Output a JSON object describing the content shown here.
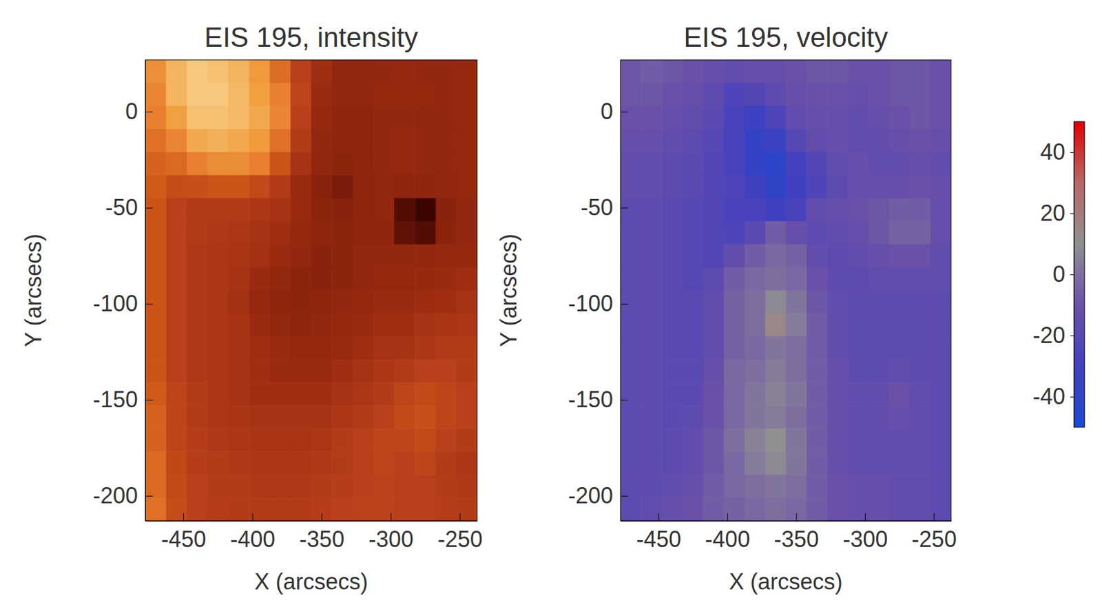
{
  "chart_data": [
    {
      "type": "heatmap",
      "title": "EIS 195, intensity",
      "x_label": "X (arcsecs)",
      "y_label": "Y (arcsecs)",
      "xlim": [
        -477.5,
        -237.5
      ],
      "ylim": [
        -213,
        27
      ],
      "xticks": [
        -450,
        -400,
        -350,
        -300,
        -250
      ],
      "yticks": [
        -200,
        -150,
        -100,
        -50,
        0
      ],
      "zlim": [
        0,
        100
      ],
      "x": [
        -470,
        -455,
        -440,
        -425,
        -410,
        -395,
        -380,
        -365,
        -350,
        -335,
        -320,
        -305,
        -290,
        -275,
        -260,
        -245
      ],
      "y": [
        21,
        9,
        -3,
        -15,
        -27,
        -39,
        -51,
        -63,
        -75,
        -87,
        -99,
        -111,
        -123,
        -135,
        -147,
        -159,
        -171,
        -183,
        -195,
        -207
      ],
      "z": [
        [
          75,
          85,
          90,
          88,
          85,
          78,
          65,
          50,
          42,
          35,
          35,
          36,
          37,
          36,
          36,
          38
        ],
        [
          72,
          85,
          90,
          90,
          86,
          80,
          70,
          52,
          40,
          35,
          35,
          37,
          38,
          37,
          36,
          38
        ],
        [
          70,
          80,
          88,
          88,
          86,
          82,
          72,
          50,
          38,
          33,
          34,
          36,
          36,
          35,
          36,
          38
        ],
        [
          66,
          72,
          82,
          84,
          82,
          78,
          66,
          48,
          36,
          33,
          34,
          36,
          37,
          36,
          36,
          38
        ],
        [
          62,
          64,
          70,
          74,
          74,
          70,
          58,
          44,
          35,
          32,
          34,
          36,
          37,
          36,
          36,
          38
        ],
        [
          60,
          55,
          56,
          58,
          58,
          54,
          48,
          40,
          30,
          25,
          33,
          35,
          34,
          33,
          35,
          37
        ],
        [
          58,
          50,
          48,
          48,
          48,
          46,
          44,
          40,
          32,
          30,
          33,
          35,
          15,
          10,
          30,
          36
        ],
        [
          58,
          50,
          48,
          47,
          46,
          44,
          42,
          38,
          34,
          32,
          34,
          34,
          18,
          15,
          32,
          36
        ],
        [
          58,
          50,
          47,
          46,
          45,
          43,
          40,
          36,
          30,
          32,
          35,
          36,
          36,
          36,
          37,
          38
        ],
        [
          58,
          50,
          47,
          46,
          44,
          40,
          36,
          32,
          30,
          32,
          35,
          37,
          38,
          39,
          40,
          42
        ],
        [
          58,
          50,
          47,
          46,
          43,
          38,
          34,
          32,
          33,
          36,
          38,
          40,
          40,
          41,
          42,
          44
        ],
        [
          58,
          50,
          47,
          46,
          44,
          40,
          36,
          34,
          36,
          38,
          40,
          42,
          42,
          44,
          45,
          46
        ],
        [
          58,
          50,
          47,
          46,
          44,
          42,
          40,
          38,
          38,
          40,
          42,
          44,
          44,
          46,
          48,
          48
        ],
        [
          58,
          50,
          47,
          46,
          44,
          42,
          40,
          40,
          40,
          42,
          44,
          46,
          48,
          50,
          50,
          48
        ],
        [
          60,
          52,
          48,
          46,
          44,
          42,
          42,
          42,
          42,
          44,
          46,
          48,
          52,
          54,
          52,
          50
        ],
        [
          62,
          52,
          48,
          46,
          45,
          44,
          44,
          44,
          44,
          46,
          48,
          50,
          54,
          56,
          52,
          50
        ],
        [
          62,
          52,
          49,
          47,
          46,
          45,
          45,
          45,
          46,
          48,
          50,
          52,
          52,
          54,
          50,
          48
        ],
        [
          64,
          53,
          49,
          48,
          47,
          46,
          46,
          46,
          47,
          48,
          50,
          52,
          50,
          52,
          48,
          46
        ],
        [
          64,
          54,
          50,
          48,
          48,
          47,
          47,
          47,
          48,
          49,
          50,
          51,
          50,
          50,
          48,
          47
        ],
        [
          66,
          55,
          50,
          49,
          48,
          48,
          48,
          48,
          49,
          50,
          51,
          51,
          50,
          50,
          49,
          48
        ]
      ]
    },
    {
      "type": "heatmap",
      "title": "EIS 195, velocity",
      "x_label": "X (arcsecs)",
      "y_label": "Y (arcsecs)",
      "xlim": [
        -477.5,
        -237.5
      ],
      "ylim": [
        -213,
        27
      ],
      "xticks": [
        -450,
        -400,
        -350,
        -300,
        -250
      ],
      "yticks": [
        -200,
        -150,
        -100,
        -50,
        0
      ],
      "zlim": [
        -50,
        50
      ],
      "zticks": [
        -40,
        -20,
        0,
        20,
        40
      ],
      "x": [
        -470,
        -455,
        -440,
        -425,
        -410,
        -395,
        -380,
        -365,
        -350,
        -335,
        -320,
        -305,
        -290,
        -275,
        -260,
        -245
      ],
      "y": [
        21,
        9,
        -3,
        -15,
        -27,
        -39,
        -51,
        -63,
        -75,
        -87,
        -99,
        -111,
        -123,
        -135,
        -147,
        -159,
        -171,
        -183,
        -195,
        -207
      ],
      "z": [
        [
          -8,
          -6,
          -8,
          -10,
          -12,
          -14,
          -12,
          -12,
          -10,
          -8,
          -8,
          -10,
          -10,
          -8,
          -8,
          -10
        ],
        [
          -8,
          -8,
          -10,
          -12,
          -16,
          -24,
          -22,
          -16,
          -12,
          -10,
          -10,
          -12,
          -10,
          -8,
          -8,
          -10
        ],
        [
          -10,
          -10,
          -12,
          -14,
          -18,
          -26,
          -32,
          -24,
          -14,
          -12,
          -12,
          -14,
          -12,
          -10,
          -8,
          -10
        ],
        [
          -12,
          -12,
          -14,
          -16,
          -20,
          -26,
          -36,
          -34,
          -20,
          -14,
          -12,
          -14,
          -14,
          -12,
          -10,
          -12
        ],
        [
          -14,
          -14,
          -16,
          -18,
          -22,
          -26,
          -36,
          -42,
          -28,
          -22,
          -14,
          -12,
          -14,
          -14,
          -12,
          -14
        ],
        [
          -14,
          -14,
          -16,
          -18,
          -22,
          -24,
          -30,
          -40,
          -30,
          -24,
          -16,
          -12,
          -12,
          -12,
          -10,
          -12
        ],
        [
          -16,
          -16,
          -18,
          -20,
          -22,
          -26,
          -26,
          -30,
          -26,
          -14,
          -12,
          -10,
          -8,
          -6,
          -6,
          -12
        ],
        [
          -16,
          -16,
          -18,
          -20,
          -22,
          -24,
          -18,
          -6,
          -12,
          -16,
          -14,
          -12,
          -8,
          -4,
          -4,
          -12
        ],
        [
          -16,
          -16,
          -18,
          -20,
          -22,
          -14,
          -6,
          -2,
          -4,
          -14,
          -16,
          -14,
          -12,
          -10,
          -10,
          -14
        ],
        [
          -16,
          -16,
          -18,
          -20,
          -16,
          -6,
          -2,
          0,
          -2,
          -10,
          -16,
          -16,
          -14,
          -14,
          -14,
          -14
        ],
        [
          -16,
          -16,
          -18,
          -18,
          -14,
          -4,
          0,
          8,
          2,
          -8,
          -14,
          -16,
          -16,
          -16,
          -16,
          -16
        ],
        [
          -16,
          -16,
          -18,
          -18,
          -14,
          -4,
          0,
          14,
          4,
          -6,
          -14,
          -16,
          -16,
          -16,
          -16,
          -16
        ],
        [
          -16,
          -16,
          -18,
          -18,
          -14,
          -4,
          -2,
          2,
          0,
          -6,
          -14,
          -16,
          -16,
          -16,
          -16,
          -16
        ],
        [
          -16,
          -16,
          -18,
          -18,
          -12,
          -2,
          0,
          4,
          0,
          -6,
          -12,
          -16,
          -16,
          -14,
          -16,
          -16
        ],
        [
          -16,
          -16,
          -18,
          -18,
          -10,
          -2,
          2,
          6,
          2,
          -6,
          -12,
          -14,
          -14,
          -10,
          -14,
          -16
        ],
        [
          -16,
          -16,
          -18,
          -16,
          -10,
          -2,
          2,
          4,
          0,
          -6,
          -12,
          -14,
          -14,
          -12,
          -14,
          -16
        ],
        [
          -16,
          -16,
          -16,
          -14,
          -8,
          0,
          6,
          10,
          2,
          -6,
          -12,
          -14,
          -14,
          -14,
          -14,
          -16
        ],
        [
          -16,
          -16,
          -16,
          -14,
          -8,
          -2,
          4,
          8,
          2,
          -6,
          -12,
          -14,
          -14,
          -14,
          -14,
          -16
        ],
        [
          -16,
          -16,
          -14,
          -12,
          -6,
          -2,
          0,
          2,
          0,
          -6,
          -10,
          -12,
          -12,
          -14,
          -14,
          -16
        ],
        [
          -16,
          -14,
          -12,
          -10,
          -6,
          -4,
          -2,
          0,
          -2,
          -6,
          -10,
          -12,
          -12,
          -14,
          -14,
          -16
        ]
      ]
    }
  ]
}
